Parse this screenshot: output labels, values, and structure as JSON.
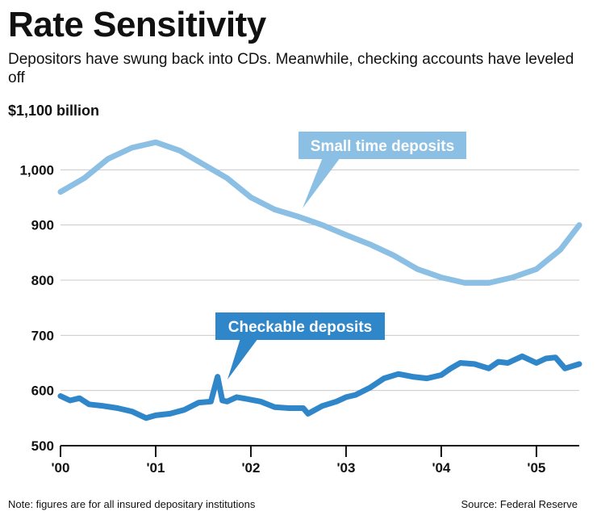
{
  "title": "Rate Sensitivity",
  "subtitle": "Depositors have swung back into CDs. Meanwhile, checking accounts have leveled off",
  "unit_label": "$1,100 billion",
  "footnote": "Note: figures are for all insured depositary institutions",
  "source": "Source: Federal Reserve",
  "colors": {
    "small_time": "#8bbfe4",
    "checkable": "#2f86c9",
    "grid": "#c9c9c9",
    "axis": "#111111"
  },
  "chart_data": {
    "type": "line",
    "title": "Rate Sensitivity",
    "ylabel": "$ billion",
    "xlabel": "",
    "ylim": [
      500,
      1100
    ],
    "xlim": [
      2000,
      2005.45
    ],
    "y_ticks": [
      500,
      600,
      700,
      800,
      900,
      1000
    ],
    "y_tick_labels": [
      "500",
      "600",
      "700",
      "800",
      "900",
      "1,000"
    ],
    "x_ticks": [
      2000,
      2001,
      2002,
      2003,
      2004,
      2005
    ],
    "x_tick_labels": [
      "'00",
      "'01",
      "'02",
      "'03",
      "'04",
      "'05"
    ],
    "grid": true,
    "series": [
      {
        "name": "Small time deposits",
        "label": "Small time deposits",
        "color_key": "small_time",
        "x": [
          2000.0,
          2000.25,
          2000.5,
          2000.75,
          2001.0,
          2001.25,
          2001.5,
          2001.75,
          2002.0,
          2002.25,
          2002.5,
          2002.75,
          2003.0,
          2003.25,
          2003.5,
          2003.75,
          2004.0,
          2004.25,
          2004.5,
          2004.75,
          2005.0,
          2005.25,
          2005.45
        ],
        "values": [
          960,
          985,
          1020,
          1040,
          1050,
          1035,
          1010,
          985,
          950,
          928,
          915,
          900,
          882,
          865,
          845,
          820,
          805,
          795,
          795,
          805,
          820,
          855,
          900
        ]
      },
      {
        "name": "Checkable deposits",
        "label": "Checkable deposits",
        "color_key": "checkable",
        "x": [
          2000.0,
          2000.1,
          2000.2,
          2000.3,
          2000.45,
          2000.6,
          2000.75,
          2000.9,
          2001.0,
          2001.15,
          2001.3,
          2001.45,
          2001.58,
          2001.65,
          2001.7,
          2001.75,
          2001.85,
          2001.95,
          2002.1,
          2002.25,
          2002.4,
          2002.55,
          2002.6,
          2002.75,
          2002.9,
          2003.0,
          2003.1,
          2003.25,
          2003.4,
          2003.55,
          2003.7,
          2003.85,
          2004.0,
          2004.1,
          2004.2,
          2004.35,
          2004.5,
          2004.6,
          2004.7,
          2004.85,
          2005.0,
          2005.1,
          2005.2,
          2005.3,
          2005.45
        ],
        "values": [
          590,
          582,
          586,
          575,
          572,
          568,
          562,
          550,
          555,
          558,
          565,
          578,
          580,
          625,
          582,
          580,
          588,
          585,
          580,
          570,
          568,
          568,
          558,
          572,
          580,
          588,
          592,
          605,
          622,
          630,
          625,
          622,
          628,
          640,
          650,
          648,
          640,
          652,
          650,
          662,
          650,
          658,
          660,
          640,
          648
        ]
      }
    ],
    "annotations": [
      "Small time deposits",
      "Checkable deposits"
    ]
  }
}
